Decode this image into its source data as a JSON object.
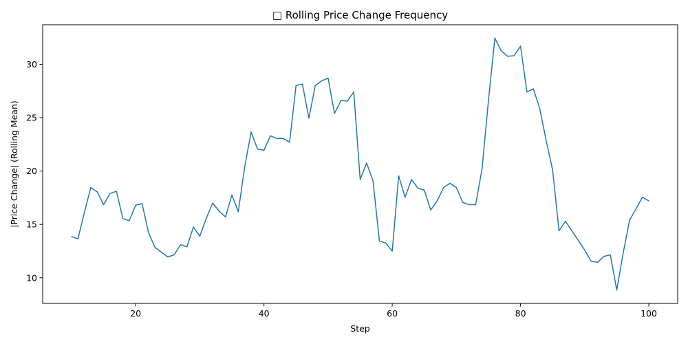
{
  "chart_data": {
    "type": "line",
    "title": "□ Rolling Price Change Frequency",
    "xlabel": "Step",
    "ylabel": "|Price Change| (Rolling Mean)",
    "xlim": [
      5.5,
      104.5
    ],
    "ylim": [
      7.6,
      33.7
    ],
    "x_ticks": [
      20,
      40,
      60,
      80,
      100
    ],
    "y_ticks": [
      10,
      15,
      20,
      25,
      30
    ],
    "grid": false,
    "legend": "none",
    "line_color": "#1f77b4",
    "series": [
      {
        "x": [
          10,
          11,
          12,
          13,
          14,
          15,
          16,
          17,
          18,
          19,
          20,
          21,
          22,
          23,
          24,
          25,
          26,
          27,
          28,
          29,
          30,
          31,
          32,
          33,
          34,
          35,
          36,
          37,
          38,
          39,
          40,
          41,
          42,
          43,
          44,
          45,
          46,
          47,
          48,
          49,
          50,
          51,
          52,
          53,
          54,
          55,
          56,
          57,
          58,
          59,
          60,
          61,
          62,
          63,
          64,
          65,
          66,
          67,
          68,
          69,
          70,
          71,
          72,
          73,
          74,
          75,
          76,
          77,
          78,
          79,
          80,
          81,
          82,
          83,
          84,
          85,
          86,
          87,
          88,
          89,
          90,
          91,
          92,
          93,
          94,
          95,
          96,
          97,
          98,
          99,
          100
        ],
        "values": [
          13.85,
          13.65,
          16.1,
          18.45,
          18.05,
          16.85,
          17.9,
          18.1,
          15.55,
          15.35,
          16.8,
          16.95,
          14.25,
          12.85,
          12.4,
          11.95,
          12.15,
          13.1,
          12.9,
          14.75,
          13.9,
          15.55,
          17.0,
          16.25,
          15.7,
          17.75,
          16.2,
          20.4,
          23.65,
          22.05,
          21.95,
          23.3,
          23.05,
          23.05,
          22.7,
          28.0,
          28.15,
          24.95,
          28.0,
          28.45,
          28.7,
          25.4,
          26.6,
          26.55,
          27.4,
          19.2,
          20.75,
          19.1,
          13.45,
          13.25,
          12.5,
          19.55,
          17.55,
          19.2,
          18.4,
          18.2,
          16.35,
          17.2,
          18.45,
          18.85,
          18.45,
          17.05,
          16.85,
          16.85,
          20.2,
          26.6,
          32.45,
          31.25,
          30.75,
          30.8,
          31.7,
          27.4,
          27.7,
          25.85,
          22.85,
          20.1,
          14.4,
          15.3,
          14.4,
          13.5,
          12.6,
          11.55,
          11.45,
          12.0,
          12.15,
          8.85,
          12.3,
          15.4,
          16.45,
          17.55,
          17.2
        ]
      }
    ]
  }
}
